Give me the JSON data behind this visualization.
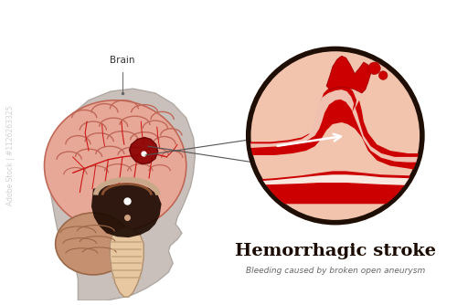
{
  "bg_color": "#ffffff",
  "title": "Hemorrhagic stroke",
  "subtitle": "Bleeding caused by broken open aneurysm",
  "title_color": "#1a0a00",
  "subtitle_color": "#666666",
  "brain_label": "Brain",
  "head_color": "#c9c0bb",
  "head_outline": "#b0a8a2",
  "brain_color": "#e8a898",
  "brain_outline": "#c06858",
  "vessel_red": "#cc1515",
  "cerebellum_color": "#b08070",
  "cerebellum_dark": "#8a6050",
  "brainstem_light": "#e8c8a8",
  "brainstem_dark": "#2a1008",
  "hemorrhage_color": "#8b0000",
  "circle_bg": "#f2c4ae",
  "circle_outline": "#1e0e04",
  "blood_red": "#cc0000",
  "blood_dark": "#990000",
  "lumen_pink": "#f5c8b8",
  "vessel_white": "#f8e8e0"
}
